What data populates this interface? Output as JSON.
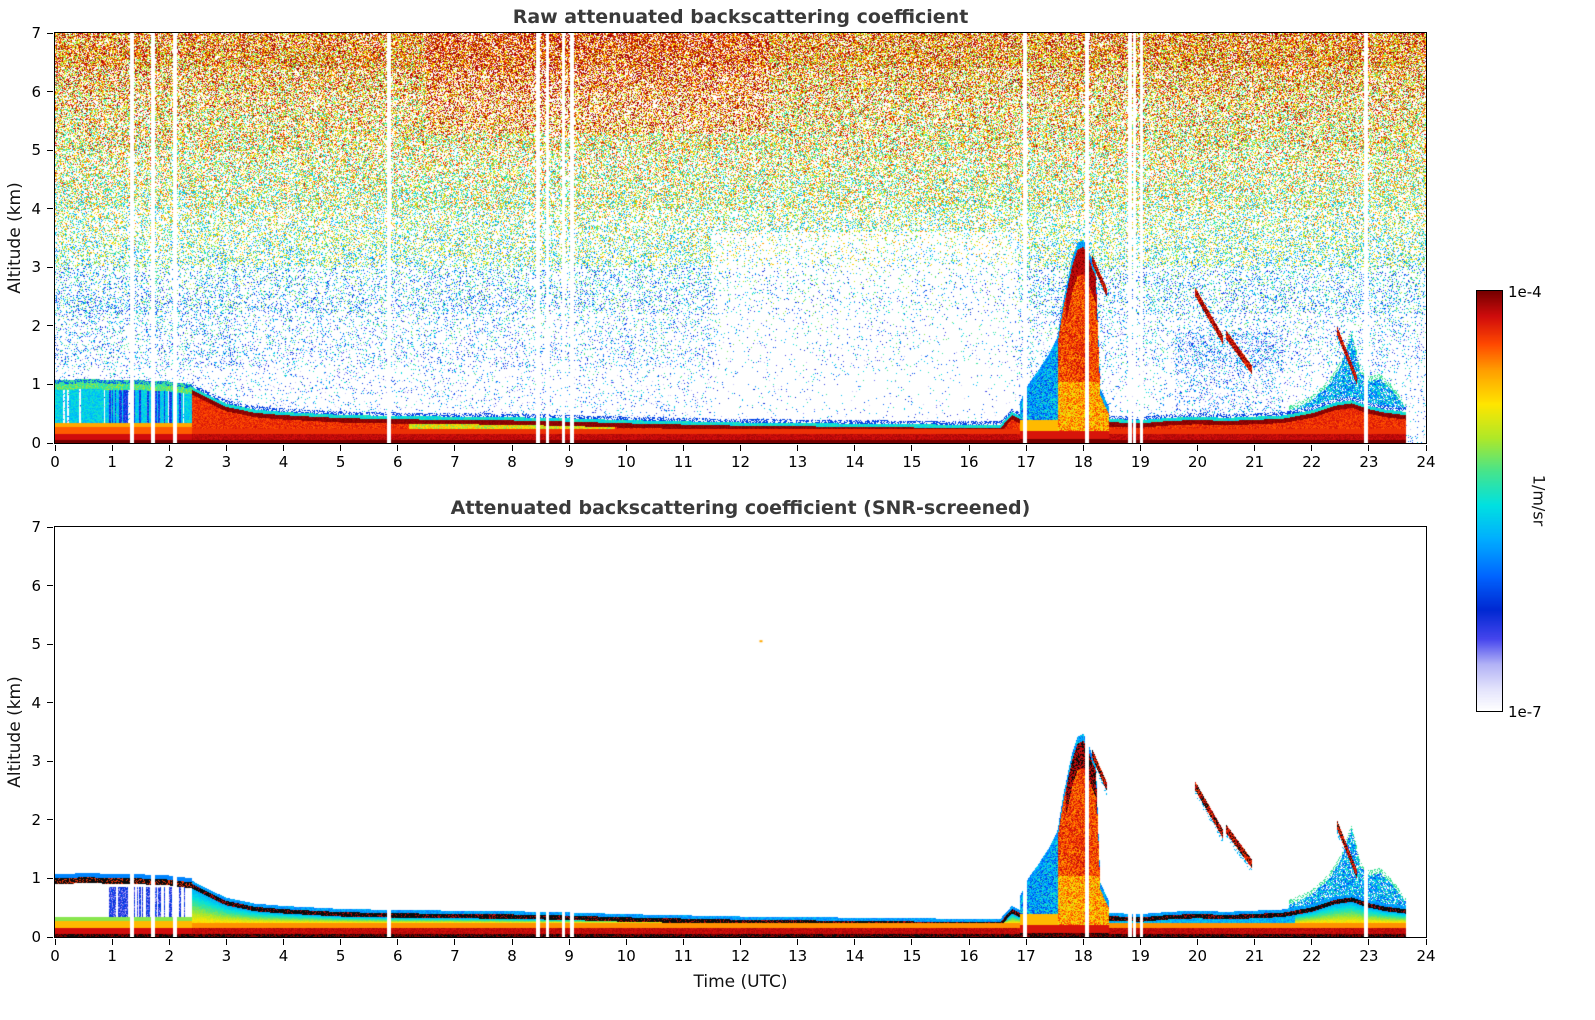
{
  "colorbar": {
    "label": "1/m/sr",
    "max_label": "1e-4",
    "min_label": "1e-7",
    "scale": "log",
    "top_color": "#760000",
    "bottom_color": "#ffffff"
  },
  "axes": {
    "time_label": "Time (UTC)",
    "altitude_label": "Altitude (km)"
  },
  "chart_data": [
    {
      "type": "heatmap",
      "title": "Raw attenuated backscattering coefficient",
      "xlabel": "",
      "ylabel": "Altitude (km)",
      "x_range": [
        0,
        24
      ],
      "y_range": [
        0,
        7
      ],
      "x_ticks": [
        0,
        1,
        2,
        3,
        4,
        5,
        6,
        7,
        8,
        9,
        10,
        11,
        12,
        13,
        14,
        15,
        16,
        17,
        18,
        19,
        20,
        21,
        22,
        23,
        24
      ],
      "y_ticks": [
        0,
        1,
        2,
        3,
        4,
        5,
        6,
        7
      ],
      "value_range_1_per_m_sr": [
        "1e-7",
        "1e-4"
      ],
      "data_end_utc": 23.65,
      "noise_background": true,
      "description": "Lidar time-height curtain: dense SNR noise speckle aloft, strong aerosol boundary layer near surface, precipitation/cloud plume 16.9-18.45 UTC up to 3.35 km, descending elevated layers near 20-21 and 22.5 UTC.",
      "boundary_layer_top_km": {
        "t": [
          0,
          0.5,
          1.0,
          1.5,
          2.0,
          2.4,
          2.7,
          3.0,
          3.5,
          4.0,
          5.0,
          6.0,
          7.0,
          8.0,
          9.0,
          10.0,
          11.0,
          12.0,
          13.0,
          14.0,
          15.0,
          16.0,
          16.55,
          16.75,
          16.9,
          18.5,
          19.0,
          19.5,
          20.0,
          20.5,
          21.0,
          21.5,
          22.0,
          22.4,
          22.7,
          23.0,
          23.3,
          23.65
        ],
        "km": [
          1.02,
          1.04,
          1.03,
          1.02,
          1.0,
          0.95,
          0.8,
          0.66,
          0.56,
          0.52,
          0.47,
          0.45,
          0.44,
          0.43,
          0.41,
          0.38,
          0.36,
          0.34,
          0.33,
          0.32,
          0.31,
          0.3,
          0.3,
          0.52,
          0.45,
          0.4,
          0.38,
          0.42,
          0.44,
          0.42,
          0.44,
          0.46,
          0.55,
          0.68,
          0.72,
          0.62,
          0.56,
          0.52
        ]
      },
      "plume": {
        "t": [
          16.9,
          17.05,
          17.2,
          17.4,
          17.55,
          17.65,
          17.8,
          17.9,
          18.0,
          18.08,
          18.15,
          18.22,
          18.3,
          18.45
        ],
        "km": [
          0.6,
          0.9,
          1.1,
          1.4,
          1.7,
          2.3,
          3.0,
          3.3,
          3.35,
          3.2,
          3.0,
          2.85,
          0.8,
          0.5
        ]
      },
      "evening_layer": {
        "t": [
          21.6,
          22.0,
          22.3,
          22.5,
          22.7,
          22.85,
          23.0,
          23.2,
          23.4,
          23.65
        ],
        "km": [
          0.55,
          0.72,
          1.0,
          1.3,
          1.85,
          1.2,
          1.05,
          1.1,
          0.9,
          0.6
        ]
      },
      "elevated_streaks": [
        [
          18.15,
          18.42,
          3.15,
          2.55
        ],
        [
          19.95,
          20.45,
          2.6,
          1.75
        ],
        [
          20.5,
          20.95,
          1.85,
          1.25
        ],
        [
          22.45,
          22.8,
          1.9,
          1.05
        ]
      ],
      "gaps_utc": [
        1.35,
        1.72,
        2.1,
        5.85,
        8.45,
        8.62,
        8.9,
        9.05,
        16.98,
        18.07,
        18.82,
        18.9,
        19.02,
        22.95
      ]
    },
    {
      "type": "heatmap",
      "title": "Attenuated backscattering coefficient (SNR-screened)",
      "xlabel": "Time (UTC)",
      "ylabel": "Altitude (km)",
      "x_range": [
        0,
        24
      ],
      "y_range": [
        0,
        7
      ],
      "x_ticks": [
        0,
        1,
        2,
        3,
        4,
        5,
        6,
        7,
        8,
        9,
        10,
        11,
        12,
        13,
        14,
        15,
        16,
        17,
        18,
        19,
        20,
        21,
        22,
        23,
        24
      ],
      "y_ticks": [
        0,
        1,
        2,
        3,
        4,
        5,
        6,
        7
      ],
      "value_range_1_per_m_sr": [
        "1e-7",
        "1e-4"
      ],
      "data_end_utc": 23.65,
      "noise_background": false,
      "description": "Same scene after SNR screening: white above the boundary layer, saturated (black) layer-top band near 0.3-1 km, precipitation plume 16.9-18.45 UTC, descending elevated layers near 20-21 and 22.5 UTC.",
      "boundary_layer_top_km": {
        "t": [
          0,
          0.5,
          1.0,
          1.5,
          2.0,
          2.4,
          2.7,
          3.0,
          3.5,
          4.0,
          5.0,
          6.0,
          7.0,
          8.0,
          9.0,
          10.0,
          11.0,
          12.0,
          13.0,
          14.0,
          15.0,
          16.0,
          16.55,
          16.75,
          16.9,
          18.5,
          19.0,
          19.5,
          20.0,
          20.5,
          21.0,
          21.5,
          22.0,
          22.4,
          22.7,
          23.0,
          23.3,
          23.65
        ],
        "km": [
          1.02,
          1.04,
          1.03,
          1.02,
          1.0,
          0.95,
          0.8,
          0.66,
          0.56,
          0.52,
          0.47,
          0.45,
          0.44,
          0.43,
          0.41,
          0.38,
          0.36,
          0.34,
          0.33,
          0.32,
          0.31,
          0.3,
          0.3,
          0.52,
          0.45,
          0.4,
          0.38,
          0.42,
          0.44,
          0.42,
          0.44,
          0.46,
          0.55,
          0.68,
          0.72,
          0.62,
          0.56,
          0.52
        ]
      },
      "plume": {
        "t": [
          16.9,
          17.05,
          17.2,
          17.4,
          17.55,
          17.65,
          17.8,
          17.9,
          18.0,
          18.08,
          18.15,
          18.22,
          18.3,
          18.45
        ],
        "km": [
          0.6,
          0.9,
          1.1,
          1.4,
          1.7,
          2.3,
          3.0,
          3.3,
          3.35,
          3.2,
          3.0,
          2.85,
          0.8,
          0.5
        ]
      },
      "evening_layer": {
        "t": [
          21.6,
          22.0,
          22.3,
          22.5,
          22.7,
          22.85,
          23.0,
          23.2,
          23.4,
          23.65
        ],
        "km": [
          0.55,
          0.72,
          1.0,
          1.3,
          1.85,
          1.2,
          1.05,
          1.1,
          0.9,
          0.6
        ]
      },
      "elevated_streaks": [
        [
          18.15,
          18.42,
          3.15,
          2.55
        ],
        [
          19.95,
          20.45,
          2.6,
          1.75
        ],
        [
          20.5,
          20.95,
          1.85,
          1.25
        ],
        [
          22.45,
          22.8,
          1.9,
          1.05
        ]
      ],
      "gaps_utc": [
        1.35,
        1.72,
        2.1,
        5.85,
        8.45,
        8.62,
        8.9,
        9.05,
        16.98,
        18.07,
        18.82,
        18.9,
        19.02,
        22.95
      ],
      "stray_specks": [
        [
          12.35,
          5.05,
          0.8
        ]
      ]
    }
  ]
}
